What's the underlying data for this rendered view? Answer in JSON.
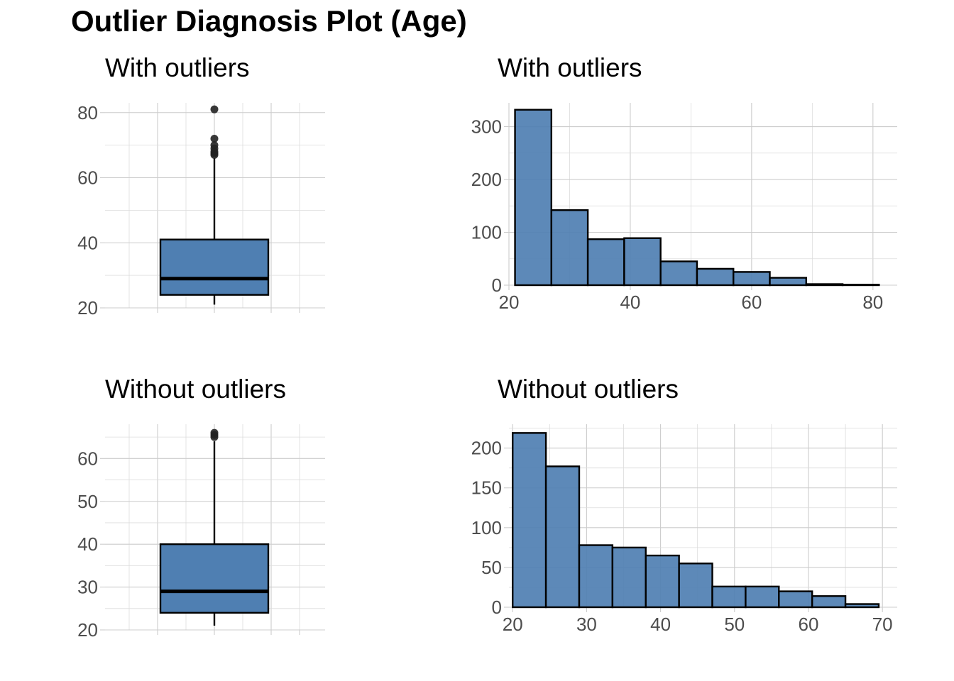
{
  "page_title": "Outlier Diagnosis Plot (Age)",
  "colors": {
    "fill": "#4f7fb2",
    "edge": "#000000",
    "point": "#222222"
  },
  "chart_data": [
    {
      "id": "box-with",
      "type": "boxplot",
      "title": "With outliers",
      "ylim": [
        20,
        83
      ],
      "yticks": [
        20,
        40,
        60,
        80
      ],
      "box": {
        "whisker_low": 21,
        "q1": 24,
        "median": 29,
        "q3": 41,
        "whisker_high": 66
      },
      "outliers": [
        67,
        67.5,
        68,
        69,
        70,
        72,
        81
      ]
    },
    {
      "id": "hist-with",
      "type": "bar",
      "title": "With outliers",
      "xlim": [
        20,
        84
      ],
      "xticks": [
        20,
        40,
        60,
        80
      ],
      "ylim": [
        0,
        345
      ],
      "yticks": [
        0,
        100,
        200,
        300
      ],
      "bins": [
        {
          "x0": 21,
          "x1": 27,
          "count": 332
        },
        {
          "x0": 27,
          "x1": 33,
          "count": 142
        },
        {
          "x0": 33,
          "x1": 39,
          "count": 87
        },
        {
          "x0": 39,
          "x1": 45,
          "count": 89
        },
        {
          "x0": 45,
          "x1": 51,
          "count": 45
        },
        {
          "x0": 51,
          "x1": 57,
          "count": 31
        },
        {
          "x0": 57,
          "x1": 63,
          "count": 25
        },
        {
          "x0": 63,
          "x1": 69,
          "count": 14
        },
        {
          "x0": 69,
          "x1": 75,
          "count": 2
        },
        {
          "x0": 75,
          "x1": 81,
          "count": 1
        }
      ]
    },
    {
      "id": "box-without",
      "type": "boxplot",
      "title": "Without outliers",
      "ylim": [
        20,
        68
      ],
      "yticks": [
        20,
        30,
        40,
        50,
        60
      ],
      "box": {
        "whisker_low": 21,
        "q1": 24,
        "median": 29,
        "q3": 40,
        "whisker_high": 64
      },
      "outliers": [
        65,
        65.5,
        66
      ]
    },
    {
      "id": "hist-without",
      "type": "bar",
      "title": "Without outliers",
      "xlim": [
        19.5,
        72
      ],
      "xticks": [
        20,
        30,
        40,
        50,
        60,
        70
      ],
      "ylim": [
        0,
        230
      ],
      "yticks": [
        0,
        50,
        100,
        150,
        200
      ],
      "bins": [
        {
          "x0": 20.0,
          "x1": 24.5,
          "count": 219
        },
        {
          "x0": 24.5,
          "x1": 29.0,
          "count": 177
        },
        {
          "x0": 29.0,
          "x1": 33.5,
          "count": 78
        },
        {
          "x0": 33.5,
          "x1": 38.0,
          "count": 75
        },
        {
          "x0": 38.0,
          "x1": 42.5,
          "count": 65
        },
        {
          "x0": 42.5,
          "x1": 47.0,
          "count": 55
        },
        {
          "x0": 47.0,
          "x1": 51.5,
          "count": 26
        },
        {
          "x0": 51.5,
          "x1": 56.0,
          "count": 26
        },
        {
          "x0": 56.0,
          "x1": 60.5,
          "count": 20
        },
        {
          "x0": 60.5,
          "x1": 65.0,
          "count": 14
        },
        {
          "x0": 65.0,
          "x1": 69.5,
          "count": 4
        }
      ]
    }
  ]
}
